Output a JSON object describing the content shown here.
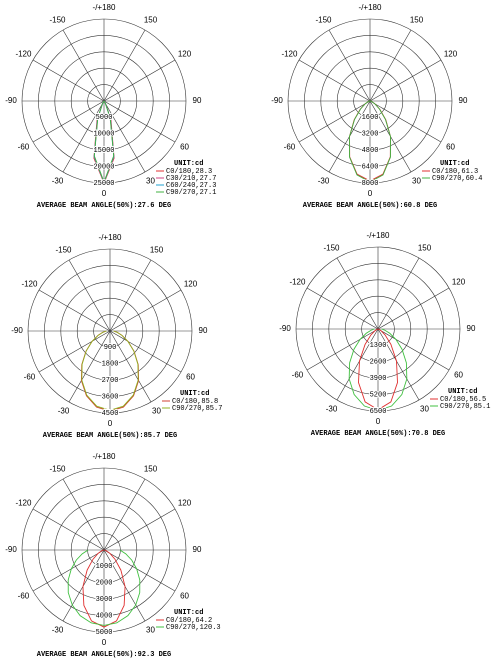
{
  "chart_data": [
    {
      "type": "polar",
      "unit": "UNIT:cd",
      "footer": "AVERAGE BEAM ANGLE(50%):27.6 DEG",
      "rlim": [
        0,
        25000
      ],
      "rticks": [
        5000,
        10000,
        15000,
        20000,
        25000
      ],
      "thetaticks": [
        {
          "value": 180,
          "label": "-/+180"
        },
        -150,
        150,
        -120,
        120,
        -90,
        90,
        -60,
        60,
        -30,
        30,
        0
      ],
      "x": [
        -90,
        -80,
        -70,
        -60,
        -50,
        -40,
        -30,
        -20,
        -10,
        0,
        10,
        20,
        30,
        40,
        50,
        60,
        70,
        80,
        90
      ],
      "series": [
        {
          "name": "C0/180,28.3",
          "color": "#e03030",
          "values": [
            0,
            0,
            0,
            0,
            0,
            80,
            1100,
            6250,
            17700,
            25000,
            17700,
            6250,
            1100,
            80,
            0,
            0,
            0,
            0,
            0
          ]
        },
        {
          "name": "C30/210,27.7",
          "color": "#d04080",
          "values": [
            0,
            0,
            0,
            0,
            0,
            60,
            980,
            5900,
            17400,
            24900,
            17400,
            5900,
            980,
            60,
            0,
            0,
            0,
            0,
            0
          ]
        },
        {
          "name": "C60/240,27.3",
          "color": "#20a0d0",
          "values": [
            0,
            0,
            0,
            0,
            0,
            50,
            900,
            5700,
            17200,
            24800,
            17200,
            5700,
            900,
            50,
            0,
            0,
            0,
            0,
            0
          ]
        },
        {
          "name": "C90/270,27.1",
          "color": "#40b040",
          "values": [
            0,
            0,
            0,
            0,
            0,
            40,
            850,
            5500,
            17000,
            24700,
            17000,
            5500,
            850,
            40,
            0,
            0,
            0,
            0,
            0
          ]
        }
      ]
    },
    {
      "type": "polar",
      "unit": "UNIT:cd",
      "footer": "AVERAGE BEAM ANGLE(50%):60.8 DEG",
      "rlim": [
        0,
        8000
      ],
      "rticks": [
        1600,
        3200,
        4800,
        6400,
        8000
      ],
      "thetaticks": [
        {
          "value": 180,
          "label": "-/+180"
        },
        -150,
        150,
        -120,
        120,
        -90,
        90,
        -60,
        60,
        -30,
        30,
        0
      ],
      "x": [
        -90,
        -80,
        -70,
        -60,
        -50,
        -40,
        -30,
        -20,
        -10,
        0,
        10,
        20,
        30,
        40,
        50,
        60,
        70,
        80,
        90
      ],
      "series": [
        {
          "name": "C0/180,61.3",
          "color": "#e03030",
          "values": [
            0,
            60,
            200,
            550,
            1250,
            2400,
            4000,
            5800,
            7250,
            7800,
            7250,
            5800,
            4000,
            2400,
            1250,
            550,
            200,
            60,
            0
          ]
        },
        {
          "name": "C90/270,60.4",
          "color": "#40b040",
          "values": [
            0,
            55,
            190,
            510,
            1190,
            2340,
            3990,
            5830,
            7320,
            7900,
            7320,
            5830,
            3990,
            2340,
            1190,
            510,
            190,
            55,
            0
          ]
        }
      ]
    },
    {
      "type": "polar",
      "unit": "UNIT:cd",
      "footer": "AVERAGE BEAM ANGLE(50%):85.7 DEG",
      "rlim": [
        0,
        4500
      ],
      "rticks": [
        900,
        1800,
        2700,
        3600,
        4500
      ],
      "thetaticks": [
        {
          "value": 180,
          "label": "-/+180"
        },
        -150,
        150,
        -120,
        120,
        -90,
        90,
        -60,
        60,
        -30,
        30,
        0
      ],
      "x": [
        -90,
        -80,
        -70,
        -60,
        -50,
        -40,
        -30,
        -20,
        -10,
        0,
        10,
        20,
        30,
        40,
        50,
        60,
        70,
        80,
        90
      ],
      "series": [
        {
          "name": "C0/180,85.8",
          "color": "#d04030",
          "values": [
            200,
            400,
            700,
            1140,
            1720,
            2410,
            3140,
            3780,
            4240,
            4400,
            4240,
            3780,
            3140,
            2410,
            1720,
            1140,
            700,
            400,
            200
          ]
        },
        {
          "name": "C90/270,85.7",
          "color": "#90b020",
          "values": [
            190,
            390,
            690,
            1130,
            1700,
            2380,
            3100,
            3740,
            4190,
            4350,
            4190,
            3740,
            3100,
            2380,
            1700,
            1130,
            690,
            390,
            190
          ]
        }
      ]
    },
    {
      "type": "polar",
      "unit": "UNIT:cd",
      "footer": "AVERAGE BEAM ANGLE(50%):70.8 DEG",
      "rlim": [
        0,
        6500
      ],
      "rticks": [
        1300,
        2600,
        3900,
        5200,
        6500
      ],
      "thetaticks": [
        {
          "value": 180,
          "label": "-/+180"
        },
        -150,
        150,
        -120,
        120,
        -90,
        90,
        -60,
        60,
        -30,
        30,
        0
      ],
      "x": [
        -90,
        -80,
        -70,
        -60,
        -50,
        -40,
        -30,
        -20,
        -10,
        0,
        10,
        20,
        30,
        40,
        50,
        60,
        70,
        80,
        90
      ],
      "series": [
        {
          "name": "C0/180,56.5",
          "color": "#e03030",
          "values": [
            0,
            25,
            90,
            280,
            730,
            1590,
            2930,
            4520,
            5870,
            6400,
            5870,
            4520,
            2930,
            1590,
            730,
            280,
            90,
            25,
            0
          ]
        },
        {
          "name": "C90/270,85.1",
          "color": "#40c040",
          "values": [
            290,
            555,
            990,
            1630,
            2480,
            3500,
            4570,
            5530,
            6200,
            6450,
            6200,
            5530,
            4570,
            3500,
            2480,
            1630,
            990,
            555,
            290
          ]
        }
      ]
    },
    {
      "type": "polar",
      "unit": "UNIT:cd",
      "footer": "AVERAGE BEAM ANGLE(50%):92.3 DEG",
      "rlim": [
        0,
        5000
      ],
      "rticks": [
        1000,
        2000,
        3000,
        4000,
        5000
      ],
      "thetaticks": [
        {
          "value": 180,
          "label": "-/+180"
        },
        -150,
        150,
        -120,
        120,
        -90,
        90,
        -60,
        60,
        -30,
        30,
        0
      ],
      "x": [
        -90,
        -80,
        -70,
        -60,
        -50,
        -40,
        -30,
        -20,
        -10,
        0,
        10,
        20,
        30,
        40,
        50,
        60,
        70,
        80,
        90
      ],
      "series": [
        {
          "name": "C0/180,64.2",
          "color": "#e03030",
          "values": [
            20,
            64,
            175,
            420,
            875,
            1600,
            2570,
            3590,
            4390,
            4700,
            4390,
            3590,
            2570,
            1600,
            875,
            420,
            175,
            64,
            20
          ]
        },
        {
          "name": "C90/270,120.3",
          "color": "#40c040",
          "values": [
            970,
            1350,
            1800,
            2300,
            2850,
            3390,
            3870,
            4260,
            4510,
            4600,
            4510,
            4260,
            3870,
            3390,
            2850,
            2300,
            1800,
            1350,
            970
          ]
        }
      ]
    }
  ]
}
